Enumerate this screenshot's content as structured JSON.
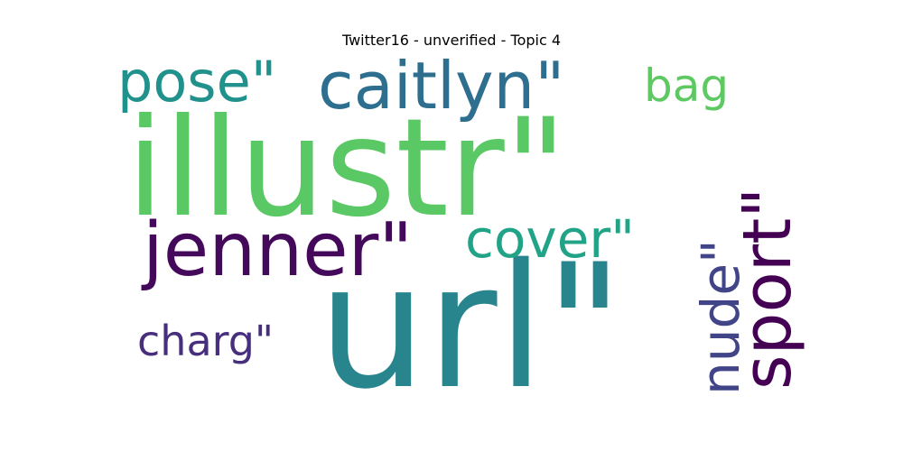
{
  "title": "Twitter16 - unverified - Topic 4",
  "words": [
    {
      "text": "illustr\"",
      "color": "#5ac864",
      "orientation": "horizontal"
    },
    {
      "text": "url\"",
      "color": "#28858e",
      "orientation": "horizontal"
    },
    {
      "text": "jenner\"",
      "color": "#45095b",
      "orientation": "horizontal"
    },
    {
      "text": "caitlyn\"",
      "color": "#2e6e8e",
      "orientation": "horizontal"
    },
    {
      "text": "pose\"",
      "color": "#21918c",
      "orientation": "horizontal"
    },
    {
      "text": "cover\"",
      "color": "#20a386",
      "orientation": "horizontal"
    },
    {
      "text": "sport\"",
      "color": "#440154",
      "orientation": "vertical"
    },
    {
      "text": "nude\"",
      "color": "#414487",
      "orientation": "vertical"
    },
    {
      "text": "charg\"",
      "color": "#472f7d",
      "orientation": "horizontal"
    },
    {
      "text": "bag",
      "color": "#5ec962",
      "orientation": "horizontal"
    }
  ]
}
